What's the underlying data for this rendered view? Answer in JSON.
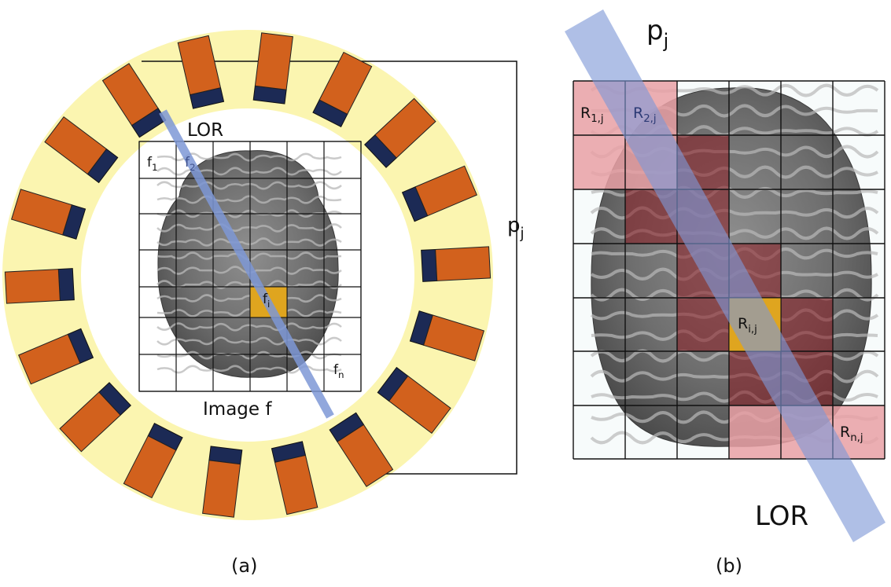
{
  "panel_a": {
    "caption": "(a)",
    "lor_label": "LOR",
    "image_label": "Image f",
    "projection_label": {
      "base": "p",
      "sub": "j"
    },
    "pixel_labels": {
      "first": {
        "base": "f",
        "sub": "1"
      },
      "second": {
        "base": "f",
        "sub": "2"
      },
      "ith": {
        "base": "f",
        "sub": "i"
      },
      "last": {
        "base": "f",
        "sub": "n"
      }
    }
  },
  "panel_b": {
    "caption": "(b)",
    "lor_label": "LOR",
    "projection_label": {
      "base": "p",
      "sub": "j"
    },
    "weight_labels": {
      "first": {
        "base": "R",
        "sub": "1,j"
      },
      "second": {
        "base": "R",
        "sub": "2,j"
      },
      "ith": {
        "base": "R",
        "sub": "i,j"
      },
      "last": {
        "base": "R",
        "sub": "n,j"
      }
    }
  },
  "colors": {
    "ring": "#fbf5b0",
    "crystal": "#d2611d",
    "pmt": "#1c2a55",
    "lor": "#7e98d6",
    "highlight_pixel": "#dfa51f",
    "intersected_pixel": "#e9a0a4",
    "grid": "#111111"
  },
  "icons": {
    "brain": "brain-mri-slice-image",
    "detector": "scintillator-detector-block"
  }
}
